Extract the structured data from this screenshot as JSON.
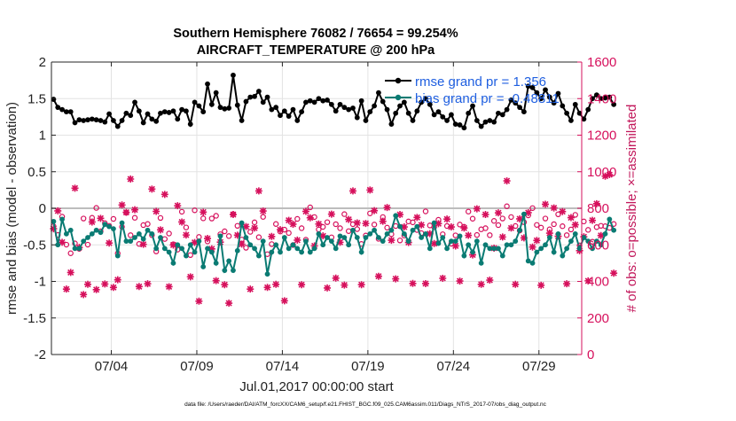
{
  "chart_data": {
    "type": "line",
    "title": [
      "Southern Hemisphere 76082 / 76654 = 99.254%",
      "AIRCRAFT_TEMPERATURE @ 200 hPa"
    ],
    "xlabel": "Jul.01,2017 00:00:00 start",
    "ylabel_left": "rmse and bias (model - observation)",
    "ylabel_right": "# of obs: o=possible; ×=assimilated",
    "footer": "data file: /Users/raeder/DAI/ATM_forcXX/CAM6_setup/f.e21.FHIST_BGC.f09_025.CAM6assim.011/Diags_NTrS_2017-07/obs_diag_output.nc",
    "xlim": [
      0.5,
      31.5
    ],
    "ylim_left": [
      -2,
      2
    ],
    "ylim_right": [
      0,
      1600
    ],
    "xticks": [
      {
        "value": 4,
        "label": "07/04"
      },
      {
        "value": 9,
        "label": "07/09"
      },
      {
        "value": 14,
        "label": "07/14"
      },
      {
        "value": 19,
        "label": "07/19"
      },
      {
        "value": 24,
        "label": "07/24"
      },
      {
        "value": 29,
        "label": "07/29"
      }
    ],
    "yticks_left": [
      -2,
      -1.5,
      -1,
      -0.5,
      0,
      0.5,
      1,
      1.5,
      2
    ],
    "yticks_right": [
      0,
      200,
      400,
      600,
      800,
      1000,
      1200,
      1400,
      1600
    ],
    "grid": true,
    "legend_position": "top-right",
    "x_step_days": 0.25,
    "x_start": 0.625,
    "series": [
      {
        "name": "rmse grand pr = 1.356",
        "axis": "left",
        "color": "#000000",
        "values": [
          1.49,
          1.38,
          1.35,
          1.32,
          1.32,
          1.17,
          1.21,
          1.2,
          1.21,
          1.22,
          1.21,
          1.2,
          1.18,
          1.29,
          1.2,
          1.12,
          1.2,
          1.3,
          1.27,
          1.45,
          1.33,
          1.17,
          1.29,
          1.22,
          1.19,
          1.3,
          1.32,
          1.31,
          1.33,
          1.22,
          1.35,
          1.33,
          1.15,
          1.45,
          1.4,
          1.32,
          1.7,
          1.42,
          1.58,
          1.38,
          1.36,
          1.37,
          1.82,
          1.41,
          1.2,
          1.46,
          1.52,
          1.53,
          1.6,
          1.45,
          1.52,
          1.35,
          1.38,
          1.27,
          1.33,
          1.26,
          1.35,
          1.2,
          1.32,
          1.45,
          1.47,
          1.45,
          1.5,
          1.47,
          1.48,
          1.42,
          1.33,
          1.42,
          1.38,
          1.35,
          1.37,
          1.24,
          1.47,
          1.2,
          1.32,
          1.4,
          1.58,
          1.46,
          1.35,
          1.15,
          1.3,
          1.4,
          1.45,
          1.3,
          1.2,
          1.33,
          1.45,
          1.5,
          1.42,
          1.28,
          1.32,
          1.25,
          1.2,
          1.28,
          1.15,
          1.14,
          1.1,
          1.3,
          1.4,
          1.2,
          1.12,
          1.18,
          1.2,
          1.18,
          1.3,
          1.28,
          1.35,
          1.48,
          1.44,
          1.38,
          1.32,
          1.67,
          1.65,
          1.58,
          1.5,
          1.62,
          1.52,
          1.44,
          1.57,
          1.4,
          1.3,
          1.2,
          1.42,
          1.3,
          1.22,
          1.35,
          1.5,
          1.55,
          1.5,
          1.51,
          1.52,
          1.42
        ]
      },
      {
        "name": "bias grand pr = -0.48811",
        "axis": "left",
        "color": "#0a7b73",
        "values": [
          -0.18,
          -0.5,
          -0.15,
          -0.35,
          -0.3,
          -0.55,
          -0.55,
          -0.45,
          -0.4,
          -0.35,
          -0.3,
          -0.33,
          -0.22,
          -0.25,
          -0.28,
          -0.65,
          -0.2,
          -0.45,
          -0.45,
          -0.4,
          -0.35,
          -0.42,
          -0.3,
          -0.35,
          -0.55,
          -0.4,
          -0.55,
          -0.6,
          -0.75,
          -0.5,
          -0.55,
          -0.65,
          -0.5,
          -0.6,
          -0.45,
          -0.8,
          -0.55,
          -0.6,
          -0.75,
          -0.38,
          -0.85,
          -0.72,
          -0.85,
          -0.58,
          -0.2,
          -0.4,
          -0.5,
          -0.55,
          -0.65,
          -0.45,
          -0.9,
          -0.6,
          -0.5,
          -0.6,
          -0.4,
          -0.55,
          -0.5,
          -0.55,
          -0.6,
          -0.45,
          -0.6,
          -0.55,
          -0.35,
          -0.5,
          -0.4,
          -0.45,
          -0.55,
          -0.38,
          -0.4,
          -0.5,
          -0.3,
          -0.4,
          -0.6,
          -0.4,
          -0.35,
          -0.3,
          -0.4,
          -0.45,
          -0.35,
          -0.3,
          -0.1,
          -0.25,
          -0.35,
          -0.45,
          -0.3,
          -0.25,
          -0.4,
          -0.35,
          -0.55,
          -0.2,
          -0.48,
          -0.4,
          -0.55,
          -0.45,
          -0.45,
          -0.38,
          -0.65,
          -0.5,
          -0.6,
          -0.45,
          -0.75,
          -0.5,
          -0.55,
          -0.55,
          -0.55,
          -0.65,
          -0.5,
          -0.5,
          -0.45,
          -0.3,
          -0.08,
          -0.72,
          -0.75,
          -0.6,
          -0.55,
          -0.5,
          -0.4,
          -0.6,
          -0.35,
          -0.65,
          -0.55,
          -0.45,
          -0.35,
          -0.55,
          -0.4,
          -0.45,
          -0.55,
          -0.45,
          -0.5,
          -0.35,
          -0.15,
          -0.3
        ]
      }
    ],
    "obs_possible": [
      702,
      654,
      754,
      601,
      554,
      608,
      578,
      744,
      601,
      748,
      802,
      674,
      719,
      704,
      742,
      553,
      698,
      776,
      653,
      748,
      605,
      708,
      714,
      653,
      564,
      747,
      632,
      662,
      603,
      574,
      781,
      695,
      544,
      789,
      643,
      745,
      619,
      744,
      759,
      658,
      674,
      648,
      768,
      704,
      629,
      584,
      671,
      723,
      642,
      753,
      549,
      604,
      714,
      673,
      683,
      665,
      599,
      742,
      691,
      628,
      805,
      752,
      684,
      698,
      724,
      641,
      713,
      691,
      768,
      675,
      713,
      686,
      605,
      651,
      772,
      711,
      633,
      752,
      694,
      658,
      703,
      624,
      651,
      728,
      723,
      681,
      664,
      783,
      706,
      697,
      737,
      658,
      703,
      606,
      652,
      711,
      699,
      782,
      743,
      654,
      685,
      691,
      653,
      731,
      708,
      744,
      811,
      752,
      703,
      678,
      724,
      761,
      801,
      709,
      694,
      744,
      685,
      713,
      767,
      702,
      653,
      684,
      764,
      597,
      728,
      682,
      617,
      697,
      704,
      702,
      693,
      714
    ],
    "obs_assimilated": [
      688,
      786,
      614,
      358,
      449,
      910,
      586,
      328,
      384,
      725,
      355,
      745,
      386,
      610,
      367,
      409,
      818,
      778,
      960,
      792,
      372,
      603,
      387,
      905,
      783,
      682,
      876,
      371,
      599,
      814,
      725,
      654,
      425,
      613,
      292,
      779,
      635,
      578,
      404,
      615,
      382,
      281,
      766,
      653,
      604,
      700,
      358,
      692,
      895,
      785,
      367,
      646,
      384,
      683,
      294,
      734,
      713,
      626,
      382,
      783,
      748,
      594,
      714,
      649,
      364,
      768,
      418,
      614,
      380,
      739,
      895,
      720,
      382,
      717,
      900,
      787,
      428,
      729,
      804,
      625,
      414,
      766,
      698,
      613,
      389,
      750,
      709,
      388,
      661,
      607,
      716,
      417,
      741,
      698,
      594,
      402,
      692,
      652,
      545,
      797,
      384,
      766,
      407,
      582,
      775,
      643,
      950,
      692,
      384,
      742,
      638,
      776,
      588,
      624,
      379,
      822,
      664,
      802,
      647,
      782,
      387,
      749,
      710,
      568,
      644,
      403,
      734,
      825,
      651,
      976,
      984,
      445
    ]
  }
}
